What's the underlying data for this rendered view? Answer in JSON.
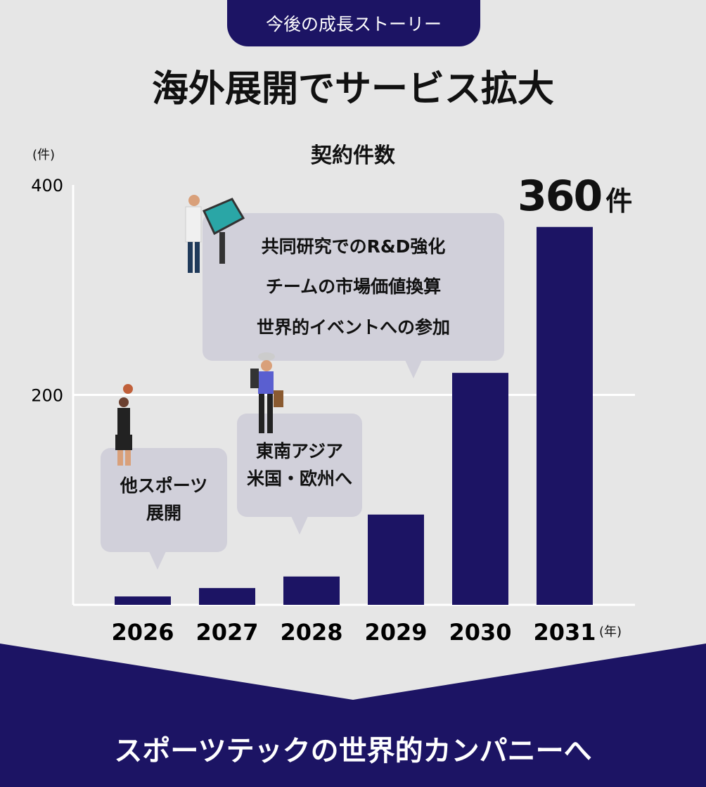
{
  "header": {
    "pill": "今後の成長ストーリー",
    "title": "海外展開でサービス拡大"
  },
  "colors": {
    "bar": "#1c1464",
    "background": "#e6e6e6",
    "bubble": "#d1d0da"
  },
  "chart_data": {
    "type": "bar",
    "title": "契約件数",
    "ylabel": "(件)",
    "xlabel": "(年)",
    "categories": [
      "2026",
      "2027",
      "2028",
      "2029",
      "2030",
      "2031"
    ],
    "values": [
      8,
      16,
      27,
      86,
      221,
      360
    ],
    "ylim": [
      0,
      400
    ],
    "yticks": [
      "200",
      "400"
    ],
    "grid": true,
    "annotation": {
      "value": "360",
      "unit": "件"
    }
  },
  "bubbles": [
    {
      "lines": [
        "他スポーツ",
        "展開"
      ]
    },
    {
      "lines": [
        "東南アジア",
        "米国・欧州へ"
      ]
    },
    {
      "lines": [
        "共同研究でのR&D強化",
        "チームの市場価値換算",
        "世界的イベントへの参加"
      ]
    }
  ],
  "footer": {
    "text": "スポーツテックの世界的カンパニーへ"
  }
}
